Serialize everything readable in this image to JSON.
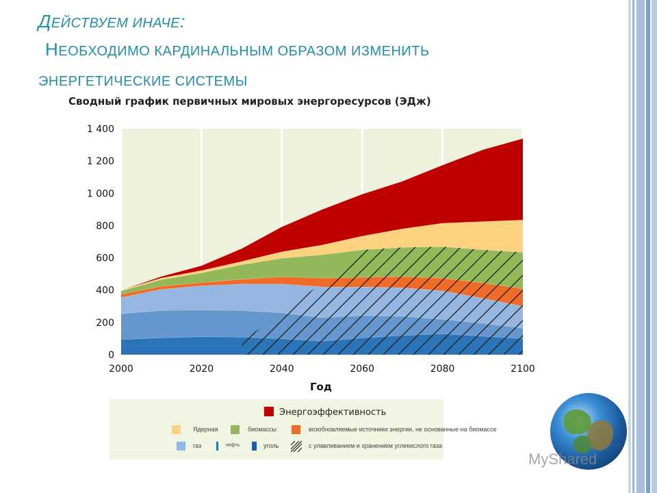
{
  "heading": {
    "line1_first": "Д",
    "line1_rest": "ЕЙСТВУЕМ ИНАЧЕ",
    "line1_colon": ":",
    "line2_first": "Н",
    "line2_rest": "ЕОБХОДИМО КАРДИНАЛЬНЫМ ОБРАЗОМ ИЗМЕНИТЬ",
    "line3": "ЭНЕРГЕТИЧЕСКИЕ СИСТЕМЫ"
  },
  "colors": {
    "heading": "#1f8fae",
    "plot_bg": "#eef2dc",
    "efficiency": "#c00000",
    "nuclear": "#fcd27e",
    "biomass": "#92b85a",
    "renewables": "#ee6b28",
    "gas": "#95b6e0",
    "oil": "#6596ce",
    "coal": "#2b74b8"
  },
  "chart_data": {
    "type": "area",
    "title": "Сводный график первичных мировых энергоресурсов (ЭДж)",
    "xlabel": "Год",
    "ylabel": "",
    "x": [
      2000,
      2010,
      2020,
      2030,
      2040,
      2050,
      2060,
      2070,
      2080,
      2090,
      2100
    ],
    "xlim": [
      2000,
      2100
    ],
    "ylim": [
      0,
      1400
    ],
    "xticks": [
      "2000",
      "2020",
      "2040",
      "2060",
      "2080",
      "2100"
    ],
    "yticks": [
      "0",
      "200",
      "400",
      "600",
      "800",
      "1 000",
      "1 200",
      "1 400"
    ],
    "yticks_values": [
      0,
      200,
      400,
      600,
      800,
      1000,
      1200,
      1400
    ],
    "grid": true,
    "series": [
      {
        "name": "уголь",
        "values": [
          95,
          105,
          112,
          110,
          100,
          85,
          105,
          120,
          130,
          115,
          100
        ]
      },
      {
        "name": "нефть",
        "values": [
          160,
          170,
          165,
          165,
          160,
          145,
          138,
          118,
          90,
          80,
          65
        ]
      },
      {
        "name": "газ",
        "values": [
          100,
          130,
          150,
          163,
          178,
          190,
          177,
          177,
          175,
          155,
          135
        ]
      },
      {
        "name": "возобновляемые источники энергии, не основанные на биомассе",
        "values": [
          20,
          20,
          20,
          30,
          45,
          55,
          60,
          70,
          80,
          95,
          110
        ]
      },
      {
        "name": "биомассы",
        "values": [
          20,
          40,
          60,
          90,
          115,
          145,
          170,
          180,
          195,
          205,
          225
        ]
      },
      {
        "name": "Ядерная",
        "values": [
          5,
          10,
          15,
          20,
          40,
          60,
          85,
          115,
          145,
          175,
          200
        ]
      },
      {
        "name": "Энергоэффективность",
        "values": [
          0,
          10,
          30,
          80,
          155,
          220,
          260,
          295,
          360,
          445,
          505
        ]
      }
    ],
    "ccs_hatch": {
      "label": "с улавливанием и хранением углекислого газа"
    }
  },
  "legend": {
    "title": "Энергоэффективность",
    "row1": [
      "Ядерная",
      "биомассы",
      "возобновляемые источники энергии, не основанные на биомассе"
    ],
    "row2": [
      "газ",
      "нефть",
      "уголь",
      "с улавливанием и хранением углекислого газа"
    ]
  },
  "watermark": "MyShared"
}
